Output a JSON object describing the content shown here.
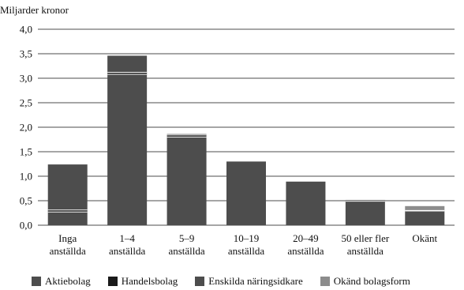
{
  "chart_data": {
    "type": "bar",
    "stacked": true,
    "ylabel": "Miljarder kronor",
    "ylim": [
      0,
      4.0
    ],
    "yticks": [
      "0,0",
      "0,5",
      "1,0",
      "1,5",
      "2,0",
      "2,5",
      "3,0",
      "3,5",
      "4,0"
    ],
    "grid": "horizontal",
    "legend_position": "bottom",
    "categories": [
      [
        "Inga",
        "anställda"
      ],
      [
        "1–4",
        "anställda"
      ],
      [
        "5–9",
        "anställda"
      ],
      [
        "10–19",
        "anställda"
      ],
      [
        "20–49",
        "anställda"
      ],
      [
        "50 eller fler",
        "anställda"
      ],
      [
        "Okänt",
        ""
      ]
    ],
    "series": [
      {
        "name": "Aktiebolag",
        "color": "#4d4d4d",
        "values": [
          0.27,
          3.08,
          1.8,
          1.3,
          0.89,
          0.49,
          0.29
        ]
      },
      {
        "name": "Handelsbolag",
        "color": "#1a1a1a",
        "values": [
          0.04,
          0.04,
          0.04,
          0.0,
          0.0,
          0.02,
          0.0
        ]
      },
      {
        "name": "Enskilda näringsidkare",
        "color": "#4d4d4d",
        "values": [
          0.93,
          0.34,
          0.02,
          0.0,
          0.0,
          0.0,
          0.01
        ]
      },
      {
        "name": "Okänd bolagsform",
        "color": "#8c8c8c",
        "values": [
          0.0,
          0.0,
          0.0,
          0.0,
          0.0,
          0.0,
          0.09
        ]
      }
    ]
  }
}
